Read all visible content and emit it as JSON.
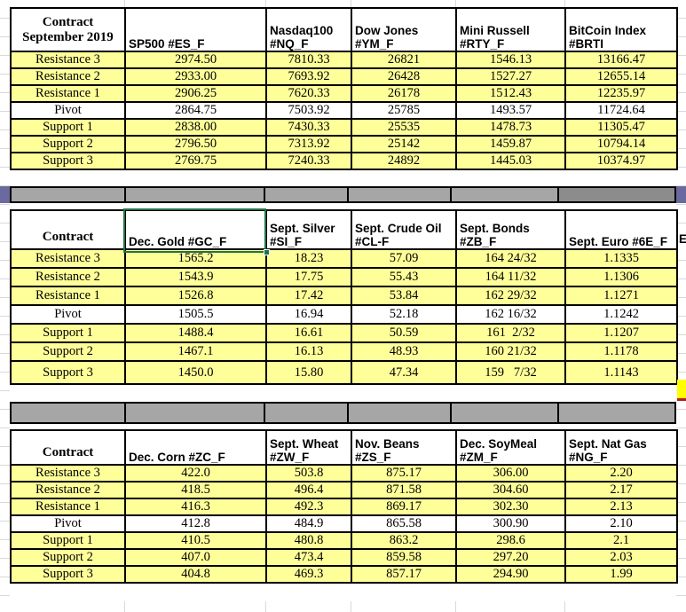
{
  "colors": {
    "cell_yellow": "#ffff99",
    "bright_yellow": "#ffff00",
    "separator_gray": "#a6a6a6",
    "separator_dark_gray": "#8c8c8c",
    "edge_purple": "#6a6a9e",
    "selection_green": "#217346",
    "border_black": "#000000",
    "gridline_gray": "#d9d9d9"
  },
  "row_labels": [
    "Resistance 3",
    "Resistance 2",
    "Resistance 1",
    "Pivot",
    "Support 1",
    "Support 2",
    "Support 3"
  ],
  "edge_fragment": "E",
  "tables": [
    {
      "corner": "Contract\nSeptember 2019",
      "columns": [
        "SP500 #ES_F",
        "Nasdaq100\n#NQ_F",
        "Dow Jones\n#YM_F",
        "Mini Russell\n#RTY_F",
        "BitCoin Index\n#BRTI"
      ],
      "rows": [
        {
          "label": "Resistance 3",
          "values": [
            "2974.50",
            "7810.33",
            "26821",
            "1546.13",
            "13166.47"
          ]
        },
        {
          "label": "Resistance 2",
          "values": [
            "2933.00",
            "7693.92",
            "26428",
            "1527.27",
            "12655.14"
          ]
        },
        {
          "label": "Resistance 1",
          "values": [
            "2906.25",
            "7620.33",
            "26178",
            "1512.43",
            "12235.97"
          ]
        },
        {
          "label": "Pivot",
          "values": [
            "2864.75",
            "7503.92",
            "25785",
            "1493.57",
            "11724.64"
          ]
        },
        {
          "label": "Support 1",
          "values": [
            "2838.00",
            "7430.33",
            "25535",
            "1478.73",
            "11305.47"
          ]
        },
        {
          "label": "Support 2",
          "values": [
            "2796.50",
            "7313.92",
            "25142",
            "1459.87",
            "10794.14"
          ]
        },
        {
          "label": "Support 3",
          "values": [
            "2769.75",
            "7240.33",
            "24892",
            "1445.03",
            "10374.97"
          ]
        }
      ]
    },
    {
      "corner": "Contract",
      "columns": [
        "Dec. Gold #GC_F",
        "Sept. Silver\n#SI_F",
        "Sept. Crude Oil\n#CL-F",
        "Sept. Bonds\n#ZB_F",
        "Sept. Euro #6E_F"
      ],
      "rows": [
        {
          "label": "Resistance 3",
          "values": [
            "1565.2",
            "18.23",
            "57.09",
            "164 24/32",
            "1.1335"
          ]
        },
        {
          "label": "Resistance 2",
          "values": [
            "1543.9",
            "17.75",
            "55.43",
            "164 11/32",
            "1.1306"
          ]
        },
        {
          "label": "Resistance 1",
          "values": [
            "1526.8",
            "17.42",
            "53.84",
            "162 29/32",
            "1.1271"
          ]
        },
        {
          "label": "Pivot",
          "values": [
            "1505.5",
            "16.94",
            "52.18",
            "162 16/32",
            "1.1242"
          ]
        },
        {
          "label": "Support 1",
          "values": [
            "1488.4",
            "16.61",
            "50.59",
            "161  2/32",
            "1.1207"
          ]
        },
        {
          "label": "Support 2",
          "values": [
            "1467.1",
            "16.13",
            "48.93",
            "160 21/32",
            "1.1178"
          ]
        },
        {
          "label": "Support 3",
          "values": [
            "1450.0",
            "15.80",
            "47.34",
            "159   7/32",
            "1.1143"
          ]
        }
      ]
    },
    {
      "corner": "Contract",
      "columns": [
        "Dec.  Corn #ZC_F",
        "Sept.  Wheat\n#ZW_F",
        "Nov. Beans #ZS_F",
        "Dec.  SoyMeal\n#ZM_F",
        "Sept. Nat Gas\n#NG_F"
      ],
      "rows": [
        {
          "label": "Resistance 3",
          "values": [
            "422.0",
            "503.8",
            "875.17",
            "306.00",
            "2.20"
          ]
        },
        {
          "label": "Resistance 2",
          "values": [
            "418.5",
            "496.4",
            "871.58",
            "304.60",
            "2.17"
          ]
        },
        {
          "label": "Resistance 1",
          "values": [
            "416.3",
            "492.3",
            "869.17",
            "302.30",
            "2.13"
          ]
        },
        {
          "label": "Pivot",
          "values": [
            "412.8",
            "484.9",
            "865.58",
            "300.90",
            "2.10"
          ]
        },
        {
          "label": "Support 1",
          "values": [
            "410.5",
            "480.8",
            "863.2",
            "298.6",
            "2.1"
          ]
        },
        {
          "label": "Support 2",
          "values": [
            "407.0",
            "473.4",
            "859.58",
            "297.20",
            "2.03"
          ]
        },
        {
          "label": "Support 3",
          "values": [
            "404.8",
            "469.3",
            "857.17",
            "294.90",
            "1.99"
          ]
        }
      ]
    }
  ]
}
